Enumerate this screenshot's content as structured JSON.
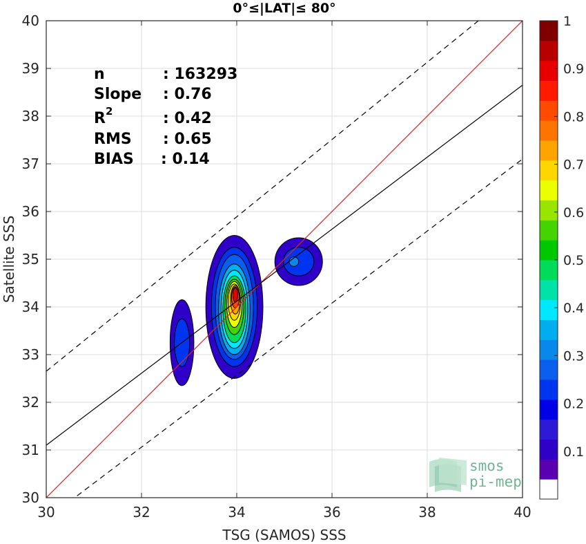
{
  "chart_data": {
    "type": "contour",
    "title": "0°≤|LAT|≤ 80°",
    "xlabel": "TSG (SAMOS) SSS",
    "ylabel": "Satellite SSS",
    "xlim": [
      30,
      40
    ],
    "ylim": [
      30,
      40
    ],
    "xticks": [
      "30",
      "32",
      "34",
      "36",
      "38",
      "40"
    ],
    "yticks": [
      "30",
      "31",
      "32",
      "33",
      "34",
      "35",
      "36",
      "37",
      "38",
      "39",
      "40"
    ],
    "grid": true,
    "stats": {
      "n_label": "n",
      "n_value": ": 163293",
      "slope_label": "Slope",
      "slope_value": ": 0.76",
      "r2_label": "R",
      "r2_sup": "2",
      "r2_value": ": 0.42",
      "rms_label": "RMS",
      "rms_value": ": 0.65",
      "bias_label": "BIAS",
      "bias_value": ": 0.14"
    },
    "lines": [
      {
        "role": "one-to-one",
        "color": "#e8201b",
        "style": "solid",
        "x": [
          30,
          40
        ],
        "y": [
          30,
          40
        ]
      },
      {
        "role": "regression",
        "color": "#000000",
        "style": "solid",
        "x": [
          30,
          40
        ],
        "y": [
          31.1,
          38.65
        ]
      },
      {
        "role": "upper-bound",
        "color": "#000000",
        "style": "dashed",
        "x": [
          30,
          40
        ],
        "y": [
          32.65,
          40.75
        ]
      },
      {
        "role": "lower-bound",
        "color": "#000000",
        "style": "dashed",
        "x": [
          30,
          40
        ],
        "y": [
          29.55,
          37.1
        ]
      }
    ],
    "colorbar": {
      "range": [
        0,
        1
      ],
      "ticks": [
        "0.1",
        "0.2",
        "0.3",
        "0.4",
        "0.5",
        "0.6",
        "0.7",
        "0.8",
        "0.9",
        "1"
      ],
      "colors": [
        "#ffffff",
        "#5a00b0",
        "#2e00c8",
        "#2e1ad6",
        "#0000e6",
        "#0035f0",
        "#0a5fee",
        "#0888ea",
        "#00aef0",
        "#00e8ff",
        "#00e3a8",
        "#00dc5a",
        "#00c800",
        "#44d400",
        "#98e600",
        "#ecff00",
        "#ffd700",
        "#ffa300",
        "#ff7400",
        "#ff4a00",
        "#ff1a00",
        "#e80000",
        "#b80000",
        "#800000"
      ]
    },
    "blobs": [
      {
        "name": "left",
        "cx": 32.85,
        "cy": 33.25,
        "levels": [
          {
            "rx": 0.25,
            "ry": 0.9,
            "c": 2
          },
          {
            "rx": 0.16,
            "ry": 0.5,
            "c": 5
          }
        ]
      },
      {
        "name": "center",
        "cx": 33.95,
        "cy": 34.0,
        "levels": [
          {
            "rx": 0.6,
            "ry": 1.5,
            "c": 2,
            "dx": 0.0,
            "dy": 0.0
          },
          {
            "rx": 0.48,
            "ry": 1.25,
            "c": 5,
            "dx": 0.0,
            "dy": 0.0
          },
          {
            "rx": 0.4,
            "ry": 1.1,
            "c": 6,
            "dx": 0.0,
            "dy": 0.0
          },
          {
            "rx": 0.33,
            "ry": 0.95,
            "c": 8,
            "dx": 0.0,
            "dy": -0.05
          },
          {
            "rx": 0.28,
            "ry": 0.82,
            "c": 9,
            "dx": 0.0,
            "dy": -0.05
          },
          {
            "rx": 0.24,
            "ry": 0.7,
            "c": 11,
            "dx": 0.0,
            "dy": -0.05
          },
          {
            "rx": 0.2,
            "ry": 0.58,
            "c": 13,
            "dx": 0.0,
            "dy": 0.0
          },
          {
            "rx": 0.16,
            "ry": 0.48,
            "c": 15,
            "dx": 0.0,
            "dy": 0.05
          },
          {
            "rx": 0.13,
            "ry": 0.38,
            "c": 16,
            "dx": 0.0,
            "dy": 0.1
          },
          {
            "rx": 0.1,
            "ry": 0.3,
            "c": 17,
            "dx": 0.02,
            "dy": 0.15
          },
          {
            "rx": 0.08,
            "ry": 0.22,
            "c": 19,
            "dx": 0.02,
            "dy": 0.2
          },
          {
            "rx": 0.05,
            "ry": 0.15,
            "c": 21,
            "dx": 0.02,
            "dy": 0.25
          }
        ]
      },
      {
        "name": "right",
        "cx": 35.3,
        "cy": 34.95,
        "levels": [
          {
            "rx": 0.5,
            "ry": 0.5,
            "c": 2
          },
          {
            "rx": 0.32,
            "ry": 0.3,
            "c": 5
          },
          {
            "rx": 0.1,
            "ry": 0.1,
            "c": 7,
            "dx": -0.1
          }
        ]
      }
    ]
  },
  "logo": {
    "line1": "smos",
    "line2": "pi-mep"
  }
}
